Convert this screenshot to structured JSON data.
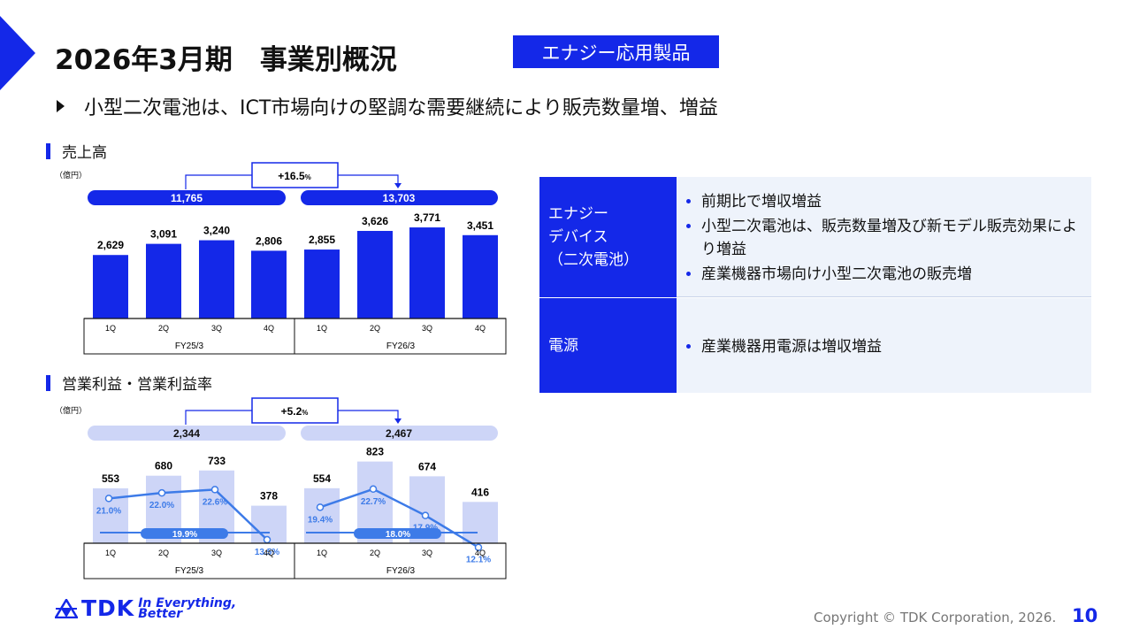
{
  "header": {
    "title": "2026年3月期　事業別概況",
    "badge": "エナジー応用製品"
  },
  "headline": "小型二次電池は、ICT市場向けの堅調な需要継続により販売数量増、増益",
  "sales_section": {
    "title": "売上高",
    "unit": "（億円）",
    "growth_value": "+16.5",
    "growth_pct": "%",
    "fy25_total": "11,765",
    "fy26_total": "13,703"
  },
  "op_section": {
    "title": "営業利益・営業利益率",
    "unit": "（億円）",
    "growth_value": "+5.2",
    "growth_pct": "%",
    "fy25_total": "2,344",
    "fy26_total": "2,467",
    "fy25_avg_margin": "19.9%",
    "fy26_avg_margin": "18.0%"
  },
  "chart_data": [
    {
      "type": "bar",
      "title": "売上高",
      "categories": [
        "1Q",
        "2Q",
        "3Q",
        "4Q",
        "1Q",
        "2Q",
        "3Q",
        "4Q"
      ],
      "groups": [
        "FY25/3",
        "FY26/3"
      ],
      "values": [
        2629,
        3091,
        3240,
        2806,
        2855,
        3626,
        3771,
        3451
      ],
      "value_labels": [
        "2,629",
        "3,091",
        "3,240",
        "2,806",
        "2,855",
        "3,626",
        "3,771",
        "3,451"
      ],
      "ylim": [
        0,
        4200
      ]
    },
    {
      "type": "bar",
      "title": "営業利益・営業利益率",
      "categories": [
        "1Q",
        "2Q",
        "3Q",
        "4Q",
        "1Q",
        "2Q",
        "3Q",
        "4Q"
      ],
      "groups": [
        "FY25/3",
        "FY26/3"
      ],
      "values": [
        553,
        680,
        733,
        378,
        554,
        823,
        674,
        416
      ],
      "value_labels": [
        "553",
        "680",
        "733",
        "378",
        "554",
        "823",
        "674",
        "416"
      ],
      "margin": [
        21.0,
        22.0,
        22.6,
        13.5,
        19.4,
        22.7,
        17.9,
        12.1
      ],
      "margin_labels": [
        "21.0%",
        "22.0%",
        "22.6%",
        "13.5%",
        "19.4%",
        "22.7%",
        "17.9%",
        "12.1%"
      ],
      "avg_margin": [
        19.9,
        18.0
      ],
      "ylim": [
        0,
        1000
      ]
    }
  ],
  "table": [
    {
      "label": "エナジー\nデバイス\n（二次電池）",
      "bullets": [
        "前期比で増収増益",
        "小型二次電池は、販売数量増及び新モデル販売効果により増益",
        "産業機器市場向け小型二次電池の販売増"
      ]
    },
    {
      "label": "電源",
      "bullets": [
        "産業機器用電源は増収増益"
      ]
    }
  ],
  "footer": {
    "logo": "TDK",
    "tagline_1": "In Everything,",
    "tagline_2": "Better",
    "copyright": "Copyright  © TDK Corporation, 2026.",
    "page": "10"
  },
  "colors": {
    "primary": "#1428e8",
    "light_bar": "#cdd5f7",
    "line": "#3d7be8",
    "table_bg": "#eef3fb"
  }
}
